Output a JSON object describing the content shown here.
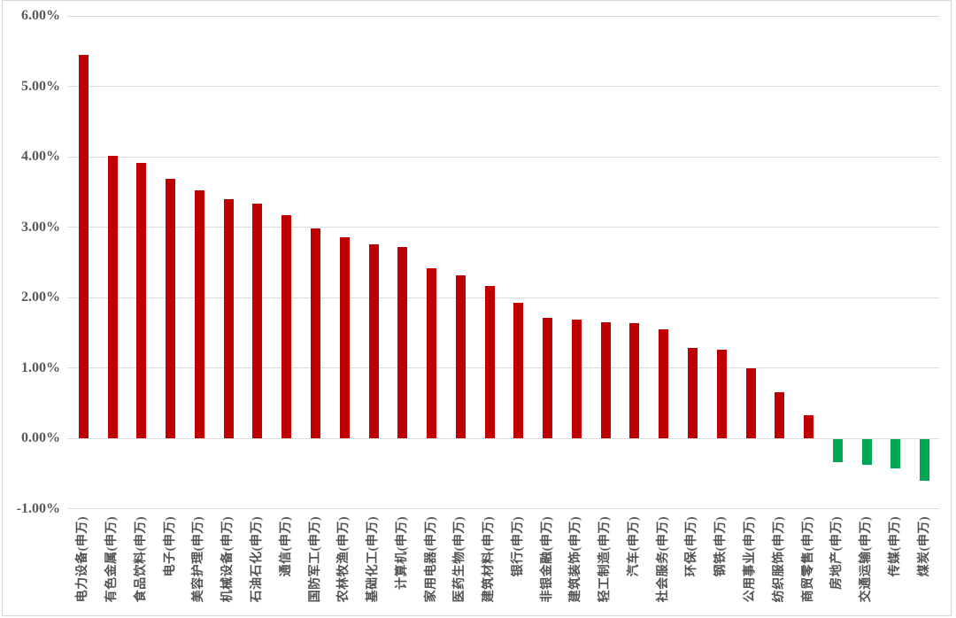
{
  "chart_data": {
    "type": "bar",
    "title": "",
    "xlabel": "",
    "ylabel": "",
    "unit": "%",
    "ylim": [
      -1,
      6
    ],
    "grid": true,
    "legend_position": "none",
    "bar_orientation": "vertical",
    "category_label_rotation_deg": -90,
    "categories": [
      "电力设备(申万)",
      "有色金属(申万)",
      "食品饮料(申万)",
      "电子(申万)",
      "美容护理(申万)",
      "机械设备(申万)",
      "石油石化(申万)",
      "通信(申万)",
      "国防军工(申万)",
      "农林牧渔(申万)",
      "基础化工(申万)",
      "计算机(申万)",
      "家用电器(申万)",
      "医药生物(申万)",
      "建筑材料(申万)",
      "银行(申万)",
      "非银金融(申万)",
      "建筑装饰(申万)",
      "轻工制造(申万)",
      "汽车(申万)",
      "社会服务(申万)",
      "环保(申万)",
      "钢铁(申万)",
      "公用事业(申万)",
      "纺织服饰(申万)",
      "商贸零售(申万)",
      "房地产(申万)",
      "交通运输(申万)",
      "传媒(申万)",
      "煤炭(申万)"
    ],
    "values": [
      5.45,
      4.01,
      3.91,
      3.68,
      3.52,
      3.39,
      3.33,
      3.17,
      2.98,
      2.85,
      2.76,
      2.72,
      2.41,
      2.31,
      2.16,
      1.92,
      1.71,
      1.68,
      1.65,
      1.63,
      1.55,
      1.28,
      1.26,
      1.0,
      0.65,
      0.33,
      -0.33,
      -0.36,
      -0.42,
      -0.59
    ],
    "yticks": [
      {
        "label": "6.00%",
        "value": 6
      },
      {
        "label": "5.00%",
        "value": 5
      },
      {
        "label": "4.00%",
        "value": 4
      },
      {
        "label": "3.00%",
        "value": 3
      },
      {
        "label": "2.00%",
        "value": 2
      },
      {
        "label": "1.00%",
        "value": 1
      },
      {
        "label": "0.00%",
        "value": 0
      },
      {
        "label": "-1.00%",
        "value": -1
      }
    ],
    "colors": {
      "positive_bar": "#c00000",
      "negative_bar": "#00a651",
      "gridline": "#dcdcdc",
      "y_tick_label": "#595959",
      "category_label": "#525252",
      "chart_border": "#d9d9d9",
      "background": "#ffffff"
    }
  }
}
